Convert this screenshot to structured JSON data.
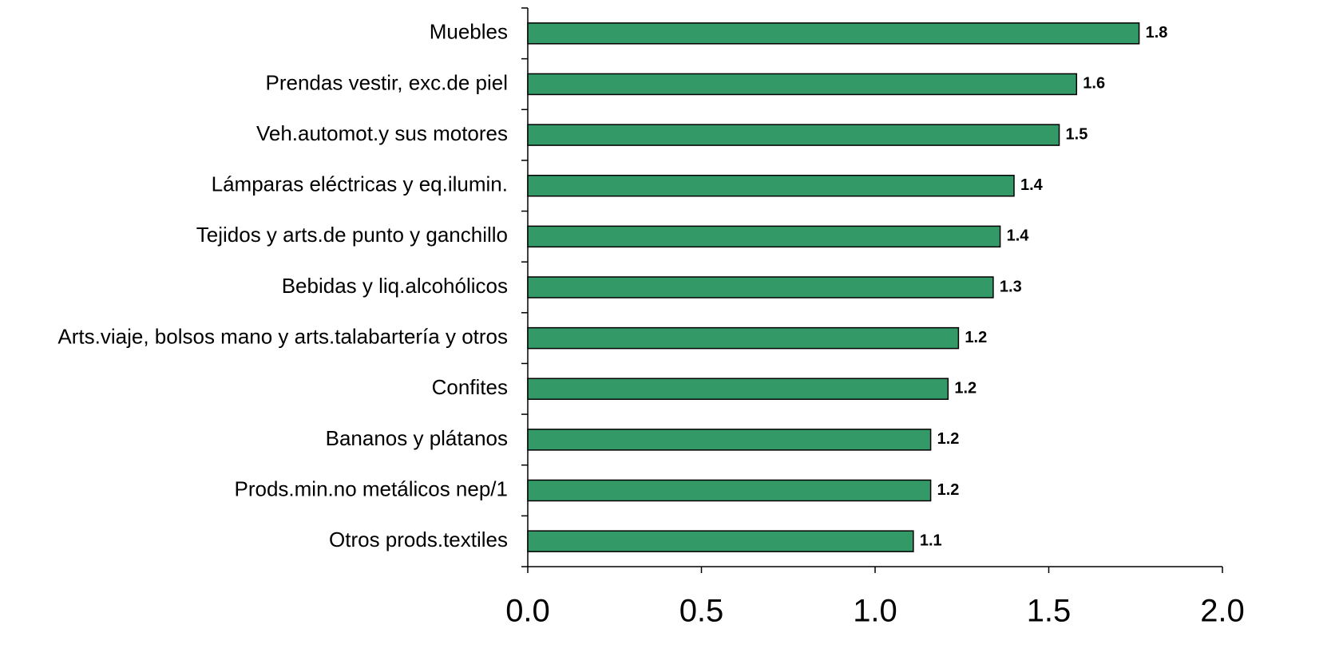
{
  "chart_data": {
    "type": "barh",
    "categories": [
      "Muebles",
      "Prendas vestir, exc.de piel",
      "Veh.automot.y sus motores",
      "Lámparas eléctricas y eq.ilumin.",
      "Tejidos y arts.de punto y ganchillo",
      "Bebidas y liq.alcohólicos",
      "Arts.viaje, bolsos mano y arts.talabartería y otros",
      "Confites",
      "Bananos y plátanos",
      "Prods.min.no metálicos nep/1",
      "Otros prods.textiles"
    ],
    "values": [
      1.76,
      1.58,
      1.53,
      1.4,
      1.36,
      1.34,
      1.24,
      1.21,
      1.16,
      1.16,
      1.11
    ],
    "value_labels": [
      "1.8",
      "1.6",
      "1.5",
      "1.4",
      "1.4",
      "1.3",
      "1.2",
      "1.2",
      "1.2",
      "1.2",
      "1.1"
    ],
    "color": "#339966",
    "xlim": [
      0,
      2
    ],
    "xticks": [
      {
        "value": 0,
        "label": "0.0"
      },
      0.5,
      {
        "value": 1,
        "label": "1.0"
      },
      1.5,
      {
        "value": 2,
        "label": "2.0"
      }
    ],
    "grid": false
  }
}
